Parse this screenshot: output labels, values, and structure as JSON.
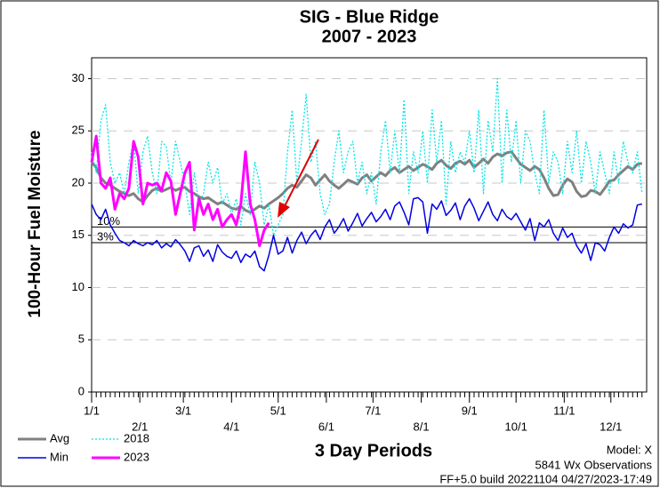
{
  "chart_data": {
    "type": "line",
    "title": "SIG - Blue Ridge",
    "subtitle": "2007 - 2023",
    "y_label": "100-Hour Fuel Moisture",
    "x_label": "3 Day Periods",
    "model": "Model: X",
    "observations": "5841 Wx Observations",
    "build": "FF+5.0 build 20221104 04/27/2023-17:49",
    "xlim": [
      0,
      119
    ],
    "ylim": [
      0,
      32
    ],
    "yticks": [
      0,
      5,
      10,
      15,
      20,
      25,
      30
    ],
    "xticks": [
      {
        "value": 0,
        "label": "1/1"
      },
      {
        "value": 10.33,
        "label": "2/1"
      },
      {
        "value": 19.67,
        "label": "3/1"
      },
      {
        "value": 30,
        "label": "4/1"
      },
      {
        "value": 40,
        "label": "5/1"
      },
      {
        "value": 50.33,
        "label": "6/1"
      },
      {
        "value": 60.33,
        "label": "7/1"
      },
      {
        "value": 70.67,
        "label": "8/1"
      },
      {
        "value": 81,
        "label": "9/1"
      },
      {
        "value": 91,
        "label": "10/1"
      },
      {
        "value": 101.33,
        "label": "11/1"
      },
      {
        "value": 111.33,
        "label": "12/1"
      }
    ],
    "grid": true,
    "reference_lines": [
      {
        "value": 15.8,
        "label": "10%"
      },
      {
        "value": 14.3,
        "label": "3%"
      }
    ],
    "x": [
      0,
      1,
      2,
      3,
      4,
      5,
      6,
      7,
      8,
      9,
      10,
      11,
      12,
      13,
      14,
      15,
      16,
      17,
      18,
      19,
      20,
      21,
      22,
      23,
      24,
      25,
      26,
      27,
      28,
      29,
      30,
      31,
      32,
      33,
      34,
      35,
      36,
      37,
      38,
      39,
      40,
      41,
      42,
      43,
      44,
      45,
      46,
      47,
      48,
      49,
      50,
      51,
      52,
      53,
      54,
      55,
      56,
      57,
      58,
      59,
      60,
      61,
      62,
      63,
      64,
      65,
      66,
      67,
      68,
      69,
      70,
      71,
      72,
      73,
      74,
      75,
      76,
      77,
      78,
      79,
      80,
      81,
      82,
      83,
      84,
      85,
      86,
      87,
      88,
      89,
      90,
      91,
      92,
      93,
      94,
      95,
      96,
      97,
      98,
      99,
      100,
      101,
      102,
      103,
      104,
      105,
      106,
      107,
      108,
      109,
      110,
      111,
      112,
      113,
      114,
      115,
      116,
      117,
      118
    ],
    "series": [
      {
        "name": "Avg",
        "color": "#808080",
        "width": 3,
        "dash": false,
        "values": [
          22,
          21.5,
          20.5,
          20,
          19.8,
          19.5,
          19.2,
          19,
          18.8,
          19,
          18.5,
          18.2,
          18.8,
          19.3,
          19.5,
          19.2,
          19.4,
          19.6,
          19.3,
          19.5,
          19.6,
          19.2,
          19,
          18.7,
          18.5,
          18.6,
          18.3,
          18,
          18.2,
          17.9,
          17.6,
          17.5,
          17.8,
          17.4,
          17.2,
          17.5,
          17.8,
          17.6,
          18,
          18.3,
          18.6,
          19,
          19.5,
          19.8,
          19.6,
          20.2,
          20.8,
          20.5,
          19.8,
          20.3,
          20.8,
          20.2,
          19.8,
          19.5,
          19.9,
          20.3,
          20.1,
          19.9,
          20.5,
          20.8,
          20.2,
          20.6,
          21,
          20.7,
          21.2,
          21.5,
          21,
          21.3,
          21.6,
          21.2,
          21.5,
          21.8,
          21.6,
          21.3,
          21.9,
          22.2,
          21.7,
          21.4,
          21.9,
          22.1,
          21.8,
          22.2,
          21.5,
          21.9,
          22.3,
          21.9,
          22.5,
          22.8,
          22.6,
          22.9,
          23,
          22.4,
          21.8,
          21.5,
          21.2,
          21.6,
          21.3,
          20.5,
          19.5,
          18.8,
          18.9,
          19.8,
          20.4,
          20.1,
          19.2,
          18.7,
          18.8,
          19.3,
          19.2,
          18.9,
          19.5,
          20.2,
          20.3,
          20.8,
          21.2,
          21.6,
          21.3,
          21.8,
          21.9
        ]
      },
      {
        "name": "Min",
        "color": "#0000e0",
        "width": 1.5,
        "dash": false,
        "values": [
          18,
          17,
          16.5,
          17.5,
          16,
          15.2,
          14.5,
          14.3,
          14,
          14.5,
          14.2,
          14,
          14.3,
          14.1,
          14.5,
          13.8,
          14.2,
          13.9,
          14.6,
          14.1,
          13.5,
          12.5,
          13.8,
          14,
          13,
          13.6,
          12.5,
          14.1,
          13.4,
          13,
          12.8,
          13.5,
          12.4,
          13.2,
          12.9,
          13.5,
          12,
          11.6,
          13.1,
          15,
          13.2,
          13.5,
          14.8,
          13.3,
          14.5,
          15.3,
          14.2,
          15,
          15.5,
          14.6,
          15.8,
          16.5,
          15.2,
          15.8,
          16.6,
          15.4,
          16.2,
          17.1,
          15.9,
          16.6,
          17.2,
          16.3,
          16.8,
          17.5,
          16.5,
          17.8,
          18.2,
          17.2,
          16,
          18.5,
          18.6,
          18.2,
          15.2,
          18,
          17.5,
          18.3,
          16.9,
          17.4,
          18.1,
          16.5,
          17.8,
          18.5,
          17.6,
          16.4,
          17.3,
          18.2,
          17,
          16.4,
          17.5,
          16.8,
          16.5,
          17.1,
          16.3,
          15.5,
          16.6,
          14.5,
          16.2,
          15.8,
          16.5,
          15.2,
          14.5,
          15.7,
          14.8,
          15.2,
          14,
          13.3,
          14.2,
          12.6,
          14.3,
          14.1,
          13.5,
          14.8,
          15.8,
          15.2,
          16.1,
          15.7,
          16,
          17.9,
          18
        ]
      },
      {
        "name": "2018",
        "color": "#00e5e5",
        "width": 1.3,
        "dash": true,
        "values": [
          23,
          21,
          26,
          27.5,
          22,
          20,
          21,
          19,
          22,
          24,
          19,
          23,
          24.5,
          21,
          19,
          24,
          23.5,
          20,
          24,
          22,
          20,
          17,
          21,
          18,
          19,
          22,
          20,
          21.5,
          18,
          19,
          17,
          18.5,
          16,
          19,
          17,
          22,
          20,
          16,
          18,
          15,
          16,
          17,
          23,
          27,
          20,
          24,
          28.5,
          22,
          24,
          19,
          17,
          18,
          22,
          25,
          21,
          23,
          24,
          20,
          22,
          19,
          21,
          18,
          23,
          26,
          21,
          25,
          21,
          28,
          19,
          23,
          21,
          25,
          20,
          27,
          22,
          26,
          18,
          24,
          21,
          23,
          22,
          25,
          21,
          27,
          19,
          26,
          23,
          30,
          20,
          27,
          22,
          26,
          20,
          25,
          24,
          21,
          19,
          27,
          20,
          23,
          22,
          19,
          24,
          21,
          25,
          20,
          24,
          22,
          19,
          23,
          21,
          19,
          23,
          20,
          24,
          22,
          21,
          23,
          19
        ]
      },
      {
        "name": "2023",
        "color": "#ff00ff",
        "width": 3,
        "dash": false,
        "values": [
          22,
          24.5,
          20,
          19.5,
          20.5,
          17.5,
          19,
          18.5,
          19.5,
          24,
          22.5,
          18,
          20,
          19.8,
          20,
          19.3,
          21,
          20.2,
          17,
          19,
          21,
          22,
          15.5,
          18.5,
          17,
          18,
          16.5,
          17.5,
          15.8,
          16.5,
          17,
          16,
          18,
          23,
          18,
          16.5,
          14,
          15.5,
          16.2,
          null,
          null,
          null,
          null,
          null,
          null,
          null,
          null,
          null,
          null,
          null,
          null,
          null,
          null,
          null,
          null,
          null,
          null,
          null,
          null,
          null,
          null,
          null,
          null,
          null,
          null,
          null,
          null,
          null,
          null,
          null,
          null,
          null,
          null,
          null,
          null,
          null,
          null,
          null,
          null,
          null,
          null,
          null,
          null,
          null,
          null,
          null,
          null,
          null,
          null,
          null,
          null,
          null,
          null,
          null,
          null,
          null,
          null,
          null,
          null,
          null,
          null,
          null,
          null,
          null,
          null,
          null,
          null,
          null,
          null,
          null,
          null,
          null,
          null,
          null,
          null,
          null,
          null,
          null,
          null
        ]
      }
    ]
  }
}
